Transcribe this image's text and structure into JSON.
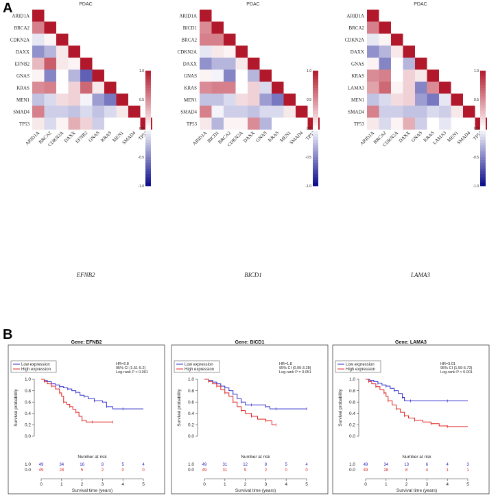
{
  "panel_labels": [
    "A",
    "B"
  ],
  "colors": {
    "high": "#b2182b",
    "low": "#0a0a8c",
    "mid": "#ffffff",
    "km_low": "#2b2bcc",
    "km_high": "#e02020"
  },
  "chart_data": [
    {
      "type": "heatmap",
      "id": "hm1",
      "title": "PDAC",
      "gene": "EFNB2",
      "genes": [
        "ARID1A",
        "BRCA2",
        "CDKN2A",
        "DAXX",
        "EFNB2",
        "GNAS",
        "KRAS",
        "MEN1",
        "SMAD4",
        "TP53"
      ],
      "colorbar": [
        "1.0",
        "0.5",
        "0.0",
        "-0.5",
        "-1.0"
      ],
      "matrix": [
        [
          1
        ],
        [
          0.55,
          1
        ],
        [
          -0.1,
          0.05,
          1
        ],
        [
          -0.45,
          -0.3,
          0.1,
          1
        ],
        [
          0.3,
          0.7,
          0.1,
          0.05,
          1
        ],
        [
          0.05,
          -0.5,
          0.0,
          -0.3,
          -0.65,
          1
        ],
        [
          0.5,
          0.55,
          0.0,
          0.2,
          0.65,
          0.1,
          1
        ],
        [
          -0.25,
          -0.15,
          0.15,
          0.2,
          -0.05,
          -0.4,
          -0.55,
          1
        ],
        [
          0.55,
          -0.2,
          -0.2,
          -0.25,
          -0.15,
          -0.25,
          -0.15,
          0.1,
          1
        ],
        [
          0.1,
          -0.15,
          0.05,
          0.35,
          0.2,
          -0.2,
          0.0,
          0.0,
          0.0,
          1
        ]
      ]
    },
    {
      "type": "heatmap",
      "id": "hm2",
      "title": "PDAC",
      "gene": "BICD1",
      "genes": [
        "ARID1A",
        "BICD1",
        "BRCA2",
        "CDKN2A",
        "DAXX",
        "GNAS",
        "KRAS",
        "MEN1",
        "SMAD4",
        "TP53"
      ],
      "colorbar": [
        "1.0",
        "0.5",
        "0.0",
        "-0.5",
        "-1.0"
      ],
      "matrix": [
        [
          1
        ],
        [
          0.5,
          1
        ],
        [
          0.55,
          0.55,
          1
        ],
        [
          -0.1,
          0.1,
          0.05,
          1
        ],
        [
          -0.45,
          -0.3,
          -0.3,
          0.1,
          1
        ],
        [
          0.05,
          -0.05,
          -0.5,
          0.0,
          -0.3,
          1
        ],
        [
          0.5,
          0.55,
          0.55,
          0.0,
          0.2,
          -0.15,
          1
        ],
        [
          -0.25,
          -0.25,
          -0.15,
          0.15,
          0.2,
          -0.4,
          -0.55,
          1
        ],
        [
          0.55,
          -0.05,
          -0.2,
          -0.2,
          -0.25,
          -0.15,
          -0.15,
          0.1,
          1
        ],
        [
          0.1,
          -0.3,
          0.05,
          0.05,
          0.5,
          -0.3,
          0.0,
          0.0,
          0.0,
          1
        ]
      ]
    },
    {
      "type": "heatmap",
      "id": "hm3",
      "title": "PDAC",
      "gene": "LAMA3",
      "genes": [
        "ARID1A",
        "BRCA2",
        "CDKN2A",
        "DAXX",
        "GNAS",
        "KRAS",
        "LAMA3",
        "MEN1",
        "SMAD4",
        "TP53"
      ],
      "colorbar": [
        "1.0",
        "0.5",
        "0.0",
        "-0.5",
        "-1.0"
      ],
      "matrix": [
        [
          1
        ],
        [
          0.55,
          1
        ],
        [
          -0.1,
          0.05,
          1
        ],
        [
          -0.45,
          -0.3,
          0.1,
          1
        ],
        [
          0.05,
          -0.5,
          0.0,
          -0.3,
          1
        ],
        [
          0.5,
          0.55,
          0.0,
          0.2,
          0.1,
          1
        ],
        [
          0.4,
          0.65,
          0.05,
          0.2,
          -0.5,
          0.5,
          1
        ],
        [
          -0.25,
          -0.15,
          0.15,
          0.2,
          -0.4,
          -0.55,
          -0.1,
          1
        ],
        [
          0.55,
          -0.2,
          -0.2,
          -0.25,
          -0.25,
          -0.15,
          -0.2,
          0.1,
          1
        ],
        [
          0.1,
          -0.15,
          0.05,
          0.35,
          -0.2,
          0.0,
          -0.1,
          0.0,
          0.0,
          1
        ]
      ]
    },
    {
      "type": "line",
      "id": "km1",
      "title": "Gene: EFNB2",
      "xlabel": "Survival time (years)",
      "ylabel": "Survival probability",
      "xlim": [
        0,
        5
      ],
      "ylim": [
        0,
        1
      ],
      "x_ticks": [
        "0",
        "1",
        "2",
        "3",
        "4",
        "5"
      ],
      "y_ticks": [
        "0.0",
        "0.2",
        "0.4",
        "0.6",
        "0.8",
        "1.0"
      ],
      "legend": [
        "Low expression",
        "High expression"
      ],
      "stats": [
        "HR=2.8",
        "95% CI (1.51-5.2)",
        "Log-rank P < 0.001"
      ],
      "risk_title": "Number at risk",
      "risk_low": [
        "49",
        "34",
        "16",
        "8",
        "5",
        "4"
      ],
      "risk_high": [
        "49",
        "28",
        "5",
        "2",
        "0",
        "0"
      ],
      "series": [
        {
          "name": "Low expression",
          "x": [
            0,
            0.15,
            0.3,
            0.5,
            0.7,
            0.9,
            1.1,
            1.3,
            1.5,
            1.7,
            1.9,
            2.1,
            2.3,
            2.6,
            3.0,
            3.2,
            3.5,
            4.0,
            5.0
          ],
          "y": [
            1,
            0.98,
            0.96,
            0.92,
            0.9,
            0.87,
            0.85,
            0.83,
            0.8,
            0.77,
            0.72,
            0.7,
            0.66,
            0.62,
            0.6,
            0.52,
            0.48,
            0.48,
            0.48
          ]
        },
        {
          "name": "High expression",
          "x": [
            0,
            0.15,
            0.3,
            0.5,
            0.7,
            0.9,
            1.0,
            1.1,
            1.25,
            1.4,
            1.55,
            1.7,
            1.85,
            2.0,
            2.2,
            2.5,
            3.0,
            3.5
          ],
          "y": [
            1,
            0.96,
            0.92,
            0.88,
            0.83,
            0.76,
            0.7,
            0.6,
            0.56,
            0.52,
            0.47,
            0.42,
            0.35,
            0.28,
            0.25,
            0.25,
            0.25,
            0.25
          ]
        }
      ]
    },
    {
      "type": "line",
      "id": "km2",
      "title": "Gene: BICD1",
      "xlabel": "Survival time (years)",
      "ylabel": "Survival probability",
      "xlim": [
        0,
        5
      ],
      "ylim": [
        0,
        1
      ],
      "x_ticks": [
        "0",
        "1",
        "2",
        "3",
        "4",
        "5"
      ],
      "y_ticks": [
        "0.0",
        "0.2",
        "0.4",
        "0.6",
        "0.8",
        "1.0"
      ],
      "legend": [
        "Low expression",
        "High expression"
      ],
      "stats": [
        "HR=1.8",
        "95% CI (0.99-3.28)",
        "Log-rank P = 0.051"
      ],
      "risk_title": "Number at risk",
      "risk_low": [
        "49",
        "31",
        "12",
        "8",
        "5",
        "4"
      ],
      "risk_high": [
        "49",
        "31",
        "9",
        "2",
        "0",
        "0"
      ],
      "series": [
        {
          "name": "Low expression",
          "x": [
            0,
            0.2,
            0.4,
            0.6,
            0.8,
            1.0,
            1.2,
            1.4,
            1.6,
            1.8,
            2.0,
            2.3,
            2.6,
            3.0,
            3.2,
            3.5,
            4.0,
            5.0
          ],
          "y": [
            1,
            0.98,
            0.95,
            0.92,
            0.88,
            0.85,
            0.8,
            0.74,
            0.66,
            0.6,
            0.55,
            0.55,
            0.55,
            0.52,
            0.48,
            0.48,
            0.48,
            0.48
          ]
        },
        {
          "name": "High expression",
          "x": [
            0,
            0.2,
            0.4,
            0.6,
            0.8,
            1.0,
            1.2,
            1.4,
            1.6,
            1.8,
            2.0,
            2.3,
            2.6,
            3.0,
            3.3,
            3.5
          ],
          "y": [
            1,
            0.96,
            0.92,
            0.88,
            0.82,
            0.76,
            0.7,
            0.6,
            0.52,
            0.45,
            0.4,
            0.35,
            0.3,
            0.27,
            0.2,
            0.2
          ]
        }
      ]
    },
    {
      "type": "line",
      "id": "km3",
      "title": "Gene: LAMA3",
      "xlabel": "Survival time (years)",
      "ylabel": "Survival probability",
      "xlim": [
        0,
        5
      ],
      "ylim": [
        0,
        1
      ],
      "x_ticks": [
        "0",
        "1",
        "2",
        "3",
        "4",
        "5"
      ],
      "y_ticks": [
        "0.0",
        "0.2",
        "0.4",
        "0.6",
        "0.8",
        "1.0"
      ],
      "legend": [
        "Low expression",
        "High expression"
      ],
      "stats": [
        "HR=3.01",
        "95% CI (1.59-5.73)",
        "Log-rank P < 0.001"
      ],
      "risk_title": "Number at risk",
      "risk_low": [
        "49",
        "34",
        "13",
        "6",
        "4",
        "3"
      ],
      "risk_high": [
        "49",
        "28",
        "8",
        "4",
        "1",
        "1"
      ],
      "series": [
        {
          "name": "Low expression",
          "x": [
            0,
            0.2,
            0.4,
            0.6,
            0.8,
            1.0,
            1.2,
            1.4,
            1.6,
            1.8,
            1.9,
            2.2,
            3.0,
            4.0,
            5.0
          ],
          "y": [
            1,
            0.98,
            0.96,
            0.93,
            0.9,
            0.88,
            0.84,
            0.8,
            0.75,
            0.68,
            0.62,
            0.62,
            0.62,
            0.62,
            0.62
          ]
        },
        {
          "name": "High expression",
          "x": [
            0,
            0.15,
            0.3,
            0.5,
            0.7,
            0.9,
            1.0,
            1.1,
            1.3,
            1.5,
            1.7,
            1.9,
            2.1,
            2.4,
            2.8,
            3.2,
            3.6,
            4.0,
            5.0
          ],
          "y": [
            1,
            0.96,
            0.92,
            0.87,
            0.82,
            0.76,
            0.7,
            0.62,
            0.55,
            0.48,
            0.42,
            0.36,
            0.32,
            0.28,
            0.25,
            0.22,
            0.18,
            0.17,
            0.17
          ]
        }
      ]
    }
  ]
}
